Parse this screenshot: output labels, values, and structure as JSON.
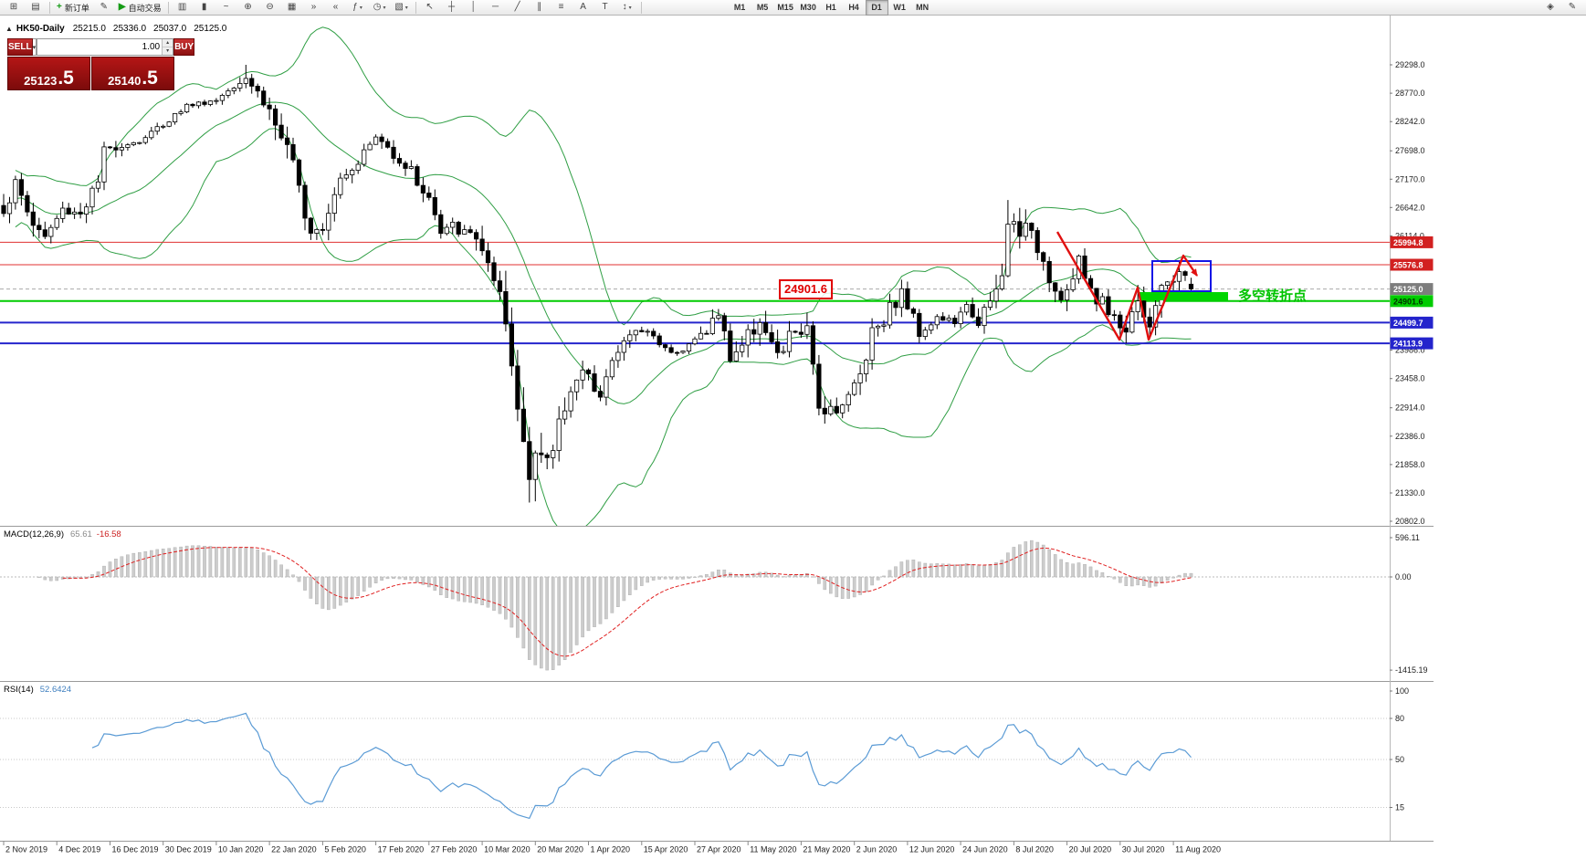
{
  "toolbar": {
    "caret_glyph": "▾",
    "left_icons": [
      {
        "name": "new-chart-button",
        "glyph": "⊞"
      },
      {
        "name": "profiles-button",
        "glyph": "▤"
      }
    ],
    "order_group": [
      {
        "name": "new-order-button",
        "glyph": "+",
        "label": "新订单",
        "green": true
      },
      {
        "name": "metaeditor-button",
        "glyph": "✎"
      },
      {
        "name": "autotrade-button",
        "glyph": "▶",
        "label": "自动交易",
        "green": true
      }
    ],
    "chart_group": [
      {
        "name": "bar-chart-button",
        "glyph": "▥"
      },
      {
        "name": "candlestick-chart-button",
        "glyph": "▮"
      },
      {
        "name": "line-chart-button",
        "glyph": "~"
      },
      {
        "name": "zoom-in-button",
        "glyph": "⊕"
      },
      {
        "name": "zoom-out-button",
        "glyph": "⊖"
      },
      {
        "name": "tile-windows-button",
        "glyph": "▦"
      },
      {
        "name": "auto-scroll-button",
        "glyph": "»"
      },
      {
        "name": "chart-shift-button",
        "glyph": "«"
      },
      {
        "name": "indicators-button",
        "glyph": "ƒ",
        "caret": true
      },
      {
        "name": "periods-button",
        "glyph": "◷",
        "caret": true
      },
      {
        "name": "templates-button",
        "glyph": "▧",
        "caret": true
      }
    ],
    "draw_group": [
      {
        "name": "cursor-button",
        "glyph": "↖"
      },
      {
        "name": "crosshair-button",
        "glyph": "┼"
      },
      {
        "name": "vertical-line-button",
        "glyph": "│"
      },
      {
        "name": "horizontal-line-button",
        "glyph": "─"
      },
      {
        "name": "trendline-button",
        "glyph": "╱"
      },
      {
        "name": "channel-button",
        "glyph": "∥"
      },
      {
        "name": "fibonacci-button",
        "glyph": "≡"
      },
      {
        "name": "text-button",
        "glyph": "A"
      },
      {
        "name": "label-button",
        "glyph": "T"
      },
      {
        "name": "arrows-button",
        "glyph": "↕",
        "caret": true
      }
    ],
    "timeframes": [
      "M1",
      "M5",
      "M15",
      "M30",
      "H1",
      "H4",
      "D1",
      "W1",
      "MN"
    ],
    "active_timeframe": "D1",
    "right_icons": [
      {
        "name": "search-button",
        "glyph": "◈"
      },
      {
        "name": "notes-button",
        "glyph": "✎"
      }
    ]
  },
  "chart": {
    "collapse_glyph": "▲",
    "symbol_label": "HK50-Daily",
    "open": "25215.0",
    "high": "25336.0",
    "low": "25037.0",
    "close": "25125.0"
  },
  "trade": {
    "sell_label": "SELL",
    "buy_label": "BUY",
    "volume": "1.00",
    "dropdown_glyph": "▾",
    "spin_up": "▴",
    "spin_down": "▾",
    "bid_main": "25123",
    "bid_frac": ".5",
    "ask_main": "25140",
    "ask_frac": ".5"
  },
  "price_axis": {
    "ticks": [
      "29298.0",
      "28770.0",
      "28242.0",
      "27698.0",
      "27170.0",
      "26642.0",
      "26114.0",
      "23986.0",
      "23458.0",
      "22914.0",
      "22386.0",
      "21858.0",
      "21330.0",
      "20802.0"
    ],
    "badges": [
      {
        "value": "25994.8",
        "bg": "#d22020",
        "fg": "#ffffff",
        "name": "resistance-badge-1"
      },
      {
        "value": "25576.8",
        "bg": "#d22020",
        "fg": "#ffffff",
        "name": "resistance-badge-2"
      },
      {
        "value": "25125.0",
        "bg": "#7d7d7d",
        "fg": "#ffffff",
        "name": "current-price-badge"
      },
      {
        "value": "24901.6",
        "bg": "#00cc00",
        "fg": "#003300",
        "name": "pivot-badge"
      },
      {
        "value": "24499.7",
        "bg": "#2424cc",
        "fg": "#ffffff",
        "name": "support-badge-1"
      },
      {
        "value": "24113.9",
        "bg": "#2424cc",
        "fg": "#ffffff",
        "name": "support-badge-2"
      }
    ]
  },
  "hlines": [
    {
      "name": "resistance-line-1",
      "price": 25994.8,
      "color": "#e03030",
      "width": 1
    },
    {
      "name": "resistance-line-2",
      "price": 25576.8,
      "color": "#e03030",
      "width": 1
    },
    {
      "name": "current-price-line",
      "price": 25125.0,
      "color": "#aaaaaa",
      "width": 1,
      "dash": "4 3"
    },
    {
      "name": "pivot-line",
      "price": 24901.6,
      "color": "#00cc00",
      "width": 2
    },
    {
      "name": "support-line-1",
      "price": 24499.7,
      "color": "#2424cc",
      "width": 2
    },
    {
      "name": "support-line-2",
      "price": 24113.9,
      "color": "#2424cc",
      "width": 2
    }
  ],
  "macd": {
    "title": "MACD(12,26,9)",
    "value": "65.61",
    "signal_value": "-16.58",
    "axis": [
      {
        "label": "596.11",
        "v": 596.11
      },
      {
        "label": "0.00",
        "v": 0
      },
      {
        "label": "-1415.19",
        "v": -1415.19
      }
    ]
  },
  "rsi": {
    "title": "RSI(14)",
    "value": "52.6424",
    "axis": [
      {
        "label": "100",
        "v": 100
      },
      {
        "label": "80",
        "v": 80
      },
      {
        "label": "50",
        "v": 50
      },
      {
        "label": "15",
        "v": 15
      }
    ],
    "levels": [
      80,
      50,
      15
    ]
  },
  "dates": [
    "2 Nov 2019",
    "4 Dec 2019",
    "16 Dec 2019",
    "30 Dec 2019",
    "10 Jan 2020",
    "22 Jan 2020",
    "5 Feb 2020",
    "17 Feb 2020",
    "27 Feb 2020",
    "10 Mar 2020",
    "20 Mar 2020",
    "1 Apr 2020",
    "15 Apr 2020",
    "27 Apr 2020",
    "11 May 2020",
    "21 May 2020",
    "2 Jun 2020",
    "12 Jun 2020",
    "24 Jun 2020",
    "8 Jul 2020",
    "20 Jul 2020",
    "30 Jul 2020",
    "11 Aug 2020"
  ],
  "annotations": {
    "pivot_label": "24901.6",
    "turning_text": "多空转折点"
  },
  "colors": {
    "bull": "#ffffff",
    "bear": "#000000",
    "bollinger": "#2f9e44",
    "macd_hist_fill": "#cccccc",
    "macd_hist_stroke": "#aaaaaa",
    "macd_signal": "#e02020",
    "rsi_line": "#5b9bd5",
    "accent_green": "#00d500",
    "annotation_red": "#e01010",
    "annotation_blue": "#1515e6"
  },
  "chart_data": {
    "type": "candlestick",
    "symbol": "HK50",
    "timeframe": "Daily",
    "title": "HK50-Daily",
    "last_candle": {
      "open": 25215.0,
      "high": 25336.0,
      "low": 25037.0,
      "close": 25125.0
    },
    "candle_count": 202,
    "visible_price_range": [
      20802.0,
      29298.0
    ],
    "key_levels": {
      "resistance": [
        25994.8,
        25576.8
      ],
      "pivot": 24901.6,
      "support": [
        24499.7,
        24113.9
      ],
      "current": 25125.0
    },
    "indicators": [
      {
        "name": "Bollinger Bands",
        "period": 20,
        "deviation": 2
      },
      {
        "name": "MACD",
        "fast": 12,
        "slow": 26,
        "signal": 9,
        "value": 65.61,
        "signal_value": -16.58
      },
      {
        "name": "RSI",
        "period": 14,
        "value": 52.6424
      }
    ],
    "price_path": [
      [
        0,
        26650
      ],
      [
        2,
        27050
      ],
      [
        5,
        26350
      ],
      [
        7,
        26090
      ],
      [
        10,
        26600
      ],
      [
        13,
        26550
      ],
      [
        16,
        27100
      ],
      [
        17,
        27650
      ],
      [
        19,
        27800
      ],
      [
        23,
        27870
      ],
      [
        27,
        28200
      ],
      [
        31,
        28540
      ],
      [
        36,
        28640
      ],
      [
        39,
        28950
      ],
      [
        41,
        29100
      ],
      [
        43,
        28790
      ],
      [
        45,
        28450
      ],
      [
        47,
        27950
      ],
      [
        49,
        27310
      ],
      [
        52,
        26310
      ],
      [
        54,
        26360
      ],
      [
        57,
        27240
      ],
      [
        60,
        27530
      ],
      [
        63,
        27950
      ],
      [
        66,
        27650
      ],
      [
        69,
        27310
      ],
      [
        72,
        26820
      ],
      [
        74,
        26130
      ],
      [
        76,
        26290
      ],
      [
        78,
        26150
      ],
      [
        80,
        26120
      ],
      [
        81,
        25880
      ],
      [
        83,
        25040
      ],
      [
        85,
        24350
      ],
      [
        87,
        22900
      ],
      [
        88,
        22400
      ],
      [
        89,
        21950
      ],
      [
        90,
        22160
      ],
      [
        92,
        21750
      ],
      [
        94,
        22650
      ],
      [
        96,
        23350
      ],
      [
        98,
        23520
      ],
      [
        101,
        23240
      ],
      [
        103,
        23750
      ],
      [
        106,
        24300
      ],
      [
        109,
        24350
      ],
      [
        112,
        24010
      ],
      [
        115,
        23980
      ],
      [
        118,
        24280
      ],
      [
        121,
        24640
      ],
      [
        123,
        23870
      ],
      [
        126,
        24230
      ],
      [
        128,
        24600
      ],
      [
        131,
        23800
      ],
      [
        134,
        24390
      ],
      [
        136,
        24280
      ],
      [
        138,
        22950
      ],
      [
        141,
        22930
      ],
      [
        143,
        23100
      ],
      [
        145,
        23550
      ],
      [
        147,
        24370
      ],
      [
        150,
        24770
      ],
      [
        152,
        25050
      ],
      [
        155,
        24340
      ],
      [
        158,
        24590
      ],
      [
        161,
        24510
      ],
      [
        163,
        24780
      ],
      [
        165,
        24550
      ],
      [
        167,
        24770
      ],
      [
        169,
        25320
      ],
      [
        170,
        26330
      ],
      [
        172,
        26290
      ],
      [
        174,
        26100
      ],
      [
        176,
        25690
      ],
      [
        178,
        25090
      ],
      [
        180,
        25060
      ],
      [
        182,
        25600
      ],
      [
        184,
        25120
      ],
      [
        186,
        24870
      ],
      [
        188,
        24660
      ],
      [
        190,
        24250
      ],
      [
        191,
        24900
      ],
      [
        192,
        25010
      ],
      [
        194,
        24500
      ],
      [
        196,
        25020
      ],
      [
        197,
        25280
      ],
      [
        198,
        25360
      ],
      [
        199,
        25500
      ],
      [
        200,
        25280
      ],
      [
        201,
        25125
      ]
    ],
    "forced_extremes": [
      {
        "index": 41,
        "type": "high",
        "price": 29298.0
      },
      {
        "index": 89,
        "type": "low",
        "price": 21150.0
      },
      {
        "index": 170,
        "type": "high",
        "price": 26782.0
      },
      {
        "index": 190,
        "type": "low",
        "price": 24113.9
      },
      {
        "index": 194,
        "type": "low",
        "price": 24260.0
      },
      {
        "index": 199,
        "type": "high",
        "price": 25576.0
      }
    ]
  }
}
